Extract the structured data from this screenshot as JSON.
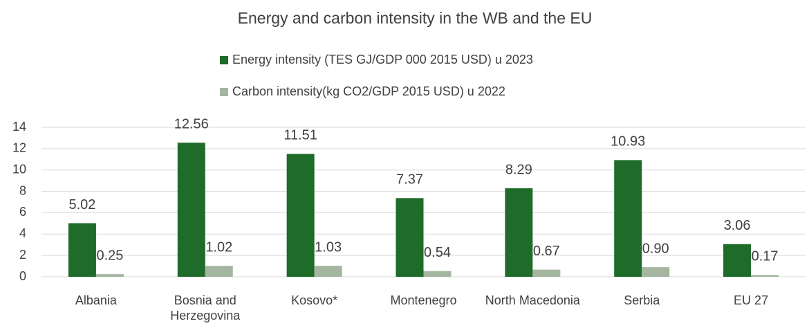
{
  "chart_data": {
    "type": "bar",
    "title": "Energy and carbon intensity in the WB and the EU",
    "categories": [
      "Albania",
      "Bosnia and Herzegovina",
      "Kosovo*",
      "Montenegro",
      "North Macedonia",
      "Serbia",
      "EU 27"
    ],
    "series": [
      {
        "name": "Energy intensity (TES GJ/GDP 000 2015 USD) u 2023",
        "color": "#1e6b2a",
        "values": [
          5.02,
          12.56,
          11.51,
          7.37,
          8.29,
          10.93,
          3.06
        ]
      },
      {
        "name": "Carbon intensity(kg CO2/GDP 2015 USD) u 2022",
        "color": "#a4b6a0",
        "values": [
          0.25,
          1.02,
          1.03,
          0.54,
          0.67,
          0.9,
          0.17
        ],
        "value_labels": [
          "0.25",
          "1.02",
          "1.03",
          "0.54",
          "0.67",
          "0.90",
          "0.17"
        ]
      }
    ],
    "ylim": [
      0,
      14
    ],
    "yticks": [
      0,
      2,
      4,
      6,
      8,
      10,
      12,
      14
    ],
    "grid": true,
    "legend": "top"
  }
}
